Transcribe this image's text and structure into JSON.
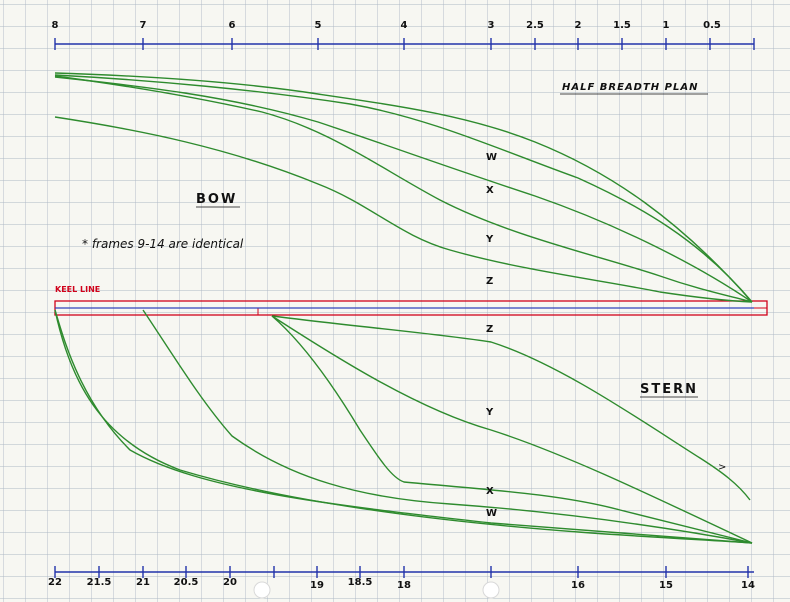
{
  "diagram": {
    "title": "HALF BREADTH PLAN",
    "bow_label": "BOW",
    "stern_label": "STERN",
    "note": "* frames 9-14 are identical",
    "keel_label": "KEEL LINE",
    "top_scale": [
      "8",
      "7",
      "6",
      "5",
      "4",
      "3",
      "2.5",
      "2",
      "1.5",
      "1",
      "0.5"
    ],
    "bottom_scale": [
      "22",
      "21.5",
      "21",
      "20.5",
      "20",
      "19",
      "18.5",
      "18",
      "16",
      "15",
      "14"
    ],
    "bow_waterlines": [
      "W",
      "X",
      "Y",
      "Z"
    ],
    "stern_waterlines": [
      "Z",
      "Y",
      "X",
      "W"
    ],
    "stray_mark": ">",
    "colors": {
      "lines": "#2e8b2e",
      "scale": "#2233aa",
      "keel": "#d0021b",
      "grid": "#aeb8c4"
    }
  }
}
